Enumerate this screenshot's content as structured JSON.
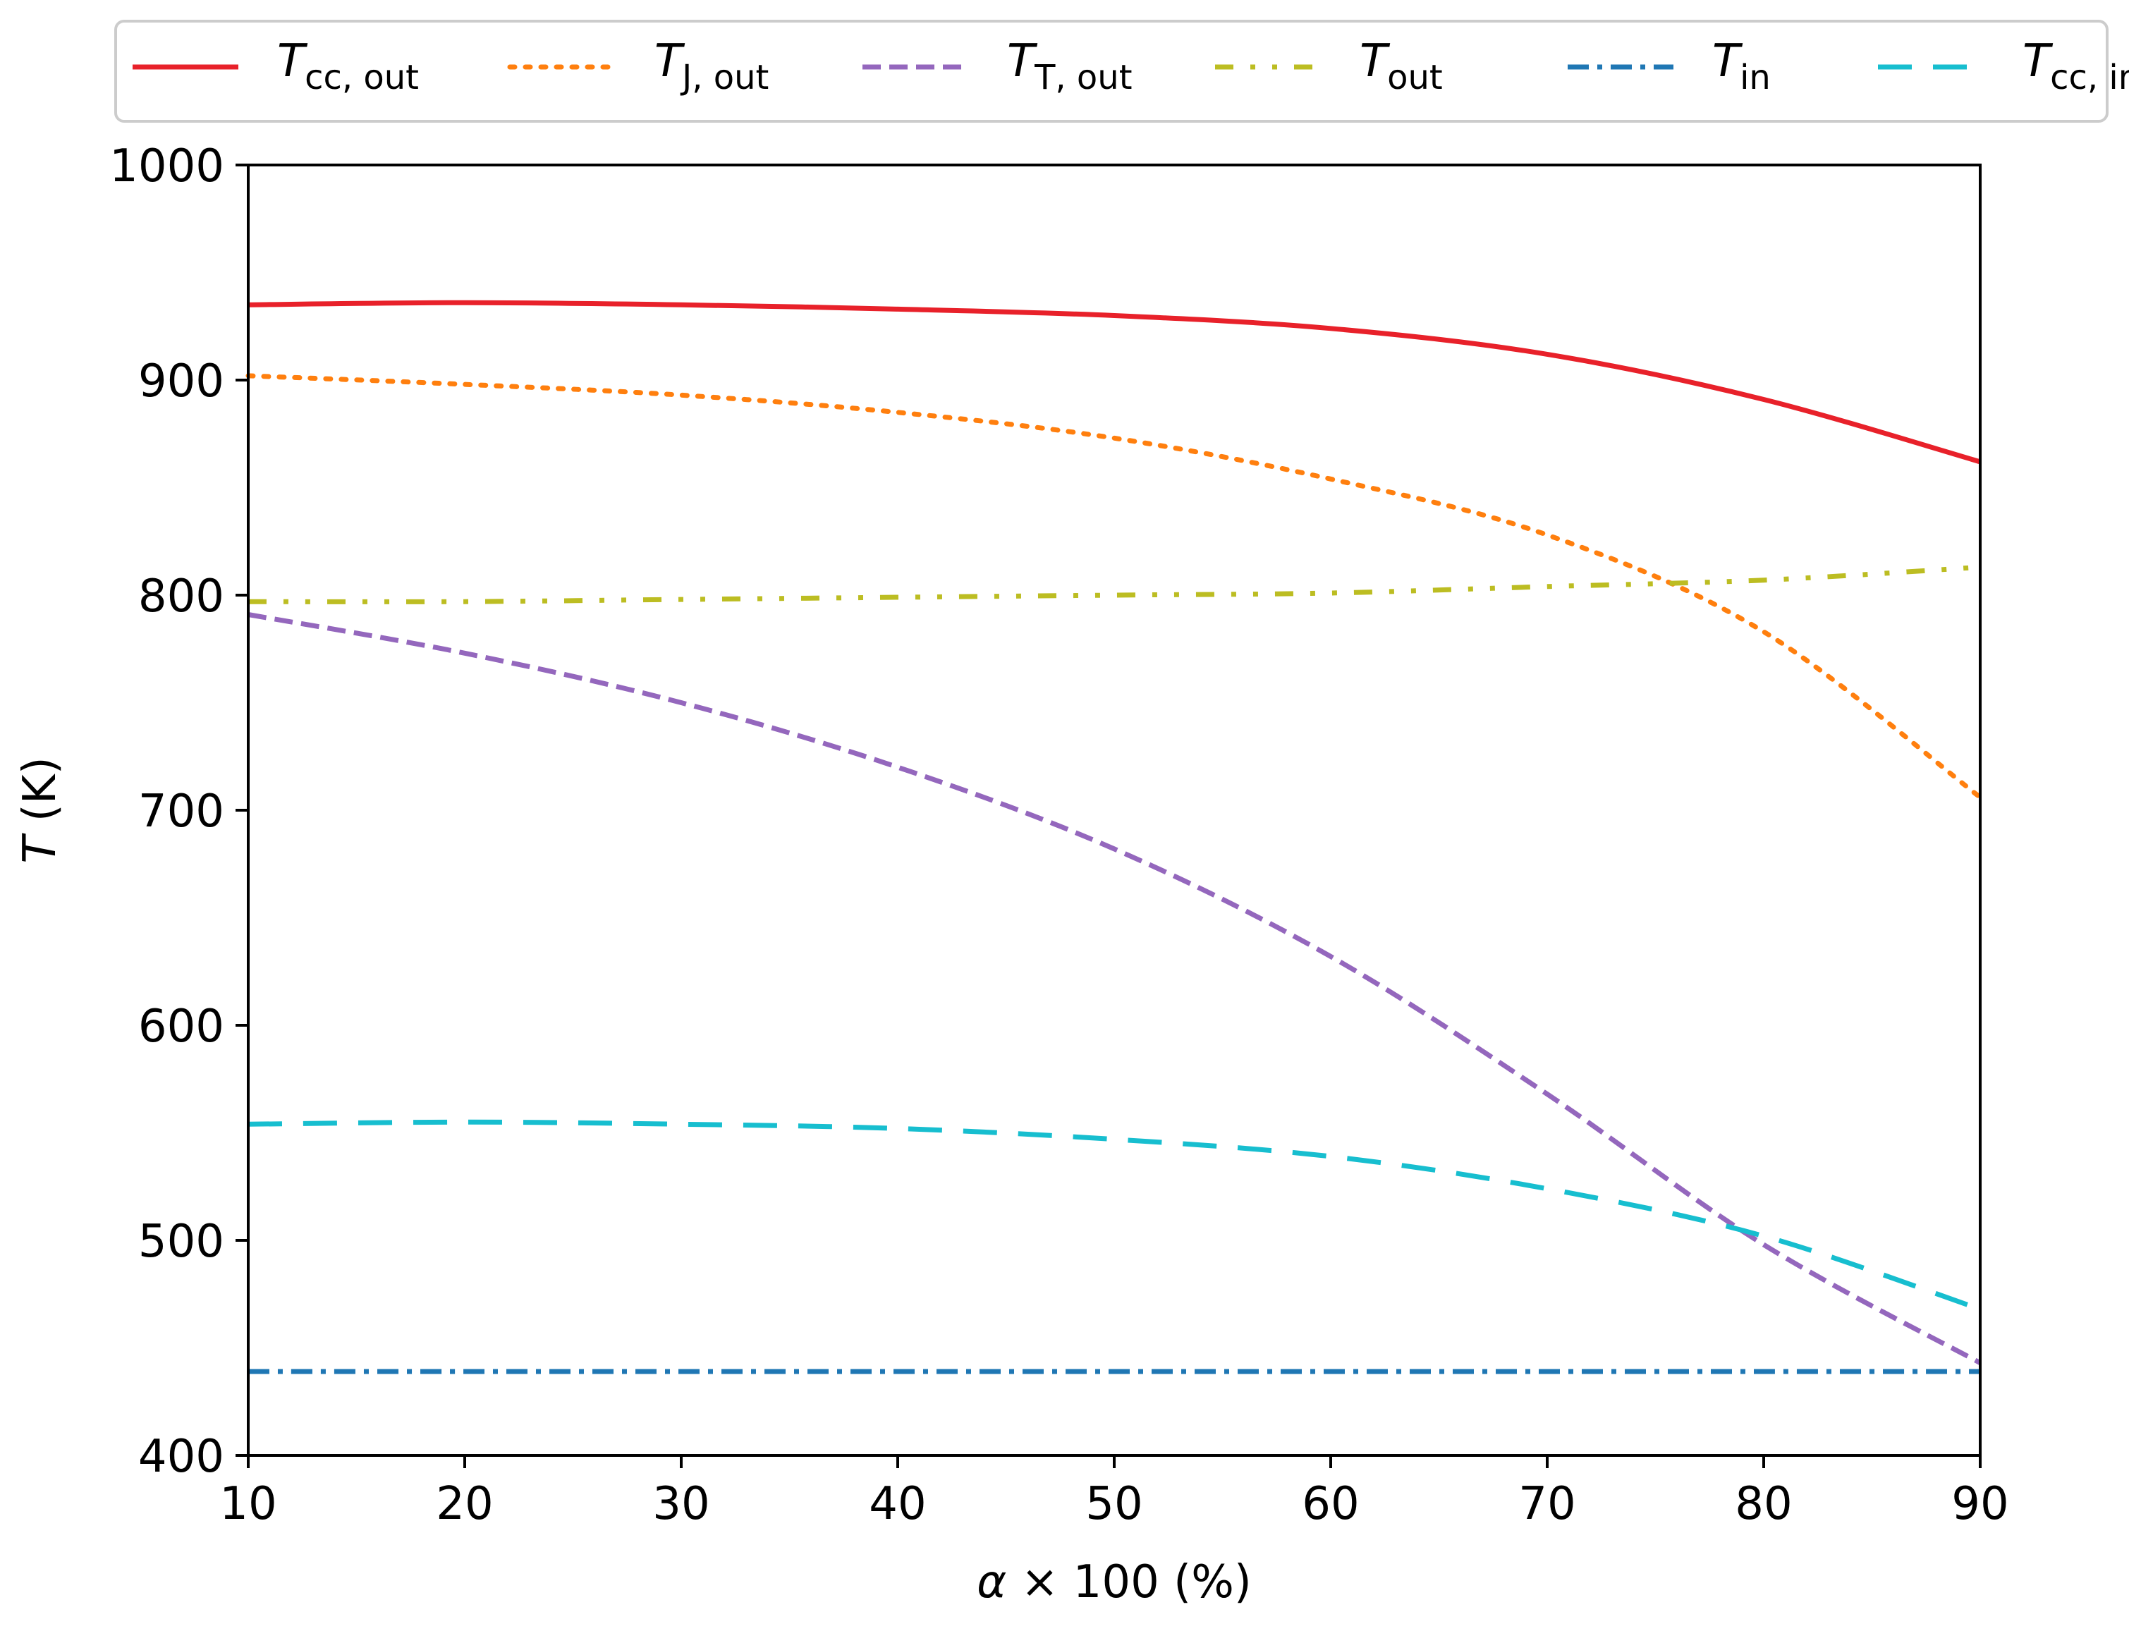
{
  "chart_data": {
    "type": "line",
    "title": "",
    "xlabel": {
      "symbol": "α",
      "rest": " × 100 (%)"
    },
    "ylabel": {
      "symbol": "T",
      "rest": " (K)"
    },
    "xlim": [
      10,
      90
    ],
    "ylim": [
      400,
      1000
    ],
    "xticks": [
      10,
      20,
      30,
      40,
      50,
      60,
      70,
      80,
      90
    ],
    "yticks": [
      400,
      500,
      600,
      700,
      800,
      900,
      1000
    ],
    "grid": false,
    "legend_position": "top",
    "series": [
      {
        "name": "Tcc,out",
        "base": "T",
        "sub": "cc, out",
        "color": "#e8212a",
        "style": "solid",
        "x": [
          10,
          20,
          30,
          40,
          50,
          60,
          70,
          80,
          90
        ],
        "y": [
          935,
          936,
          935,
          933,
          930,
          924,
          912,
          891,
          862
        ]
      },
      {
        "name": "TJ,out",
        "base": "T",
        "sub": "J, out",
        "color": "#ff7f0e",
        "style": "dotted",
        "x": [
          10,
          20,
          30,
          40,
          50,
          60,
          70,
          80,
          90
        ],
        "y": [
          902,
          898,
          893,
          885,
          873,
          854,
          828,
          783,
          706
        ]
      },
      {
        "name": "TT,out",
        "base": "T",
        "sub": "T, out",
        "color": "#9467bd",
        "style": "dashed",
        "x": [
          10,
          20,
          30,
          40,
          50,
          60,
          70,
          80,
          90
        ],
        "y": [
          791,
          773,
          750,
          720,
          682,
          632,
          568,
          498,
          443
        ]
      },
      {
        "name": "Tout",
        "base": "T",
        "sub": "out",
        "color": "#bcbd22",
        "style": "dashdotdot",
        "x": [
          10,
          20,
          30,
          40,
          50,
          60,
          70,
          80,
          90
        ],
        "y": [
          797,
          797,
          798,
          799,
          800,
          801,
          804,
          807,
          813
        ]
      },
      {
        "name": "Tin",
        "base": "T",
        "sub": "in",
        "color": "#1f77b4",
        "style": "dashdot",
        "x": [
          10,
          20,
          30,
          40,
          50,
          60,
          70,
          80,
          90
        ],
        "y": [
          439,
          439,
          439,
          439,
          439,
          439,
          439,
          439,
          439
        ]
      },
      {
        "name": "Tcc,in",
        "base": "T",
        "sub": "cc, in",
        "color": "#17becf",
        "style": "longdash",
        "x": [
          10,
          20,
          30,
          40,
          50,
          60,
          70,
          80,
          90
        ],
        "y": [
          554,
          555,
          554,
          552,
          547,
          539,
          524,
          502,
          468
        ]
      }
    ]
  }
}
